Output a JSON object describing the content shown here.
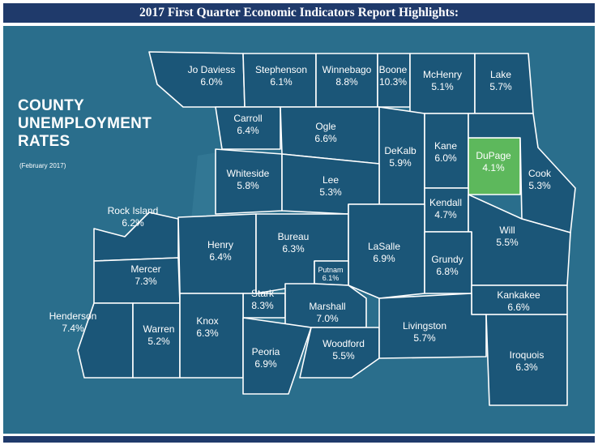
{
  "title": "2017 First Quarter Economic Indicators Report Highlights:",
  "map": {
    "heading_lines": [
      "COUNTY",
      "UNEMPLOYMENT",
      "RATES"
    ],
    "subheading": "(February 2017)",
    "highlight_color": "#5db85c",
    "county_color": "#1b5678",
    "background_color": "#2a6e8c",
    "counties": [
      {
        "name": "Jo Daviess",
        "rate": "6.0%"
      },
      {
        "name": "Stephenson",
        "rate": "6.1%"
      },
      {
        "name": "Winnebago",
        "rate": "8.8%"
      },
      {
        "name": "Boone",
        "rate": "10.3%"
      },
      {
        "name": "McHenry",
        "rate": "5.1%"
      },
      {
        "name": "Lake",
        "rate": "5.7%"
      },
      {
        "name": "Carroll",
        "rate": "6.4%"
      },
      {
        "name": "Ogle",
        "rate": "6.6%"
      },
      {
        "name": "DeKalb",
        "rate": "5.9%"
      },
      {
        "name": "Kane",
        "rate": "6.0%"
      },
      {
        "name": "DuPage",
        "rate": "4.1%"
      },
      {
        "name": "Cook",
        "rate": "5.3%"
      },
      {
        "name": "Whiteside",
        "rate": "5.8%"
      },
      {
        "name": "Lee",
        "rate": "5.3%"
      },
      {
        "name": "Rock Island",
        "rate": "6.2%"
      },
      {
        "name": "Kendall",
        "rate": "4.7%"
      },
      {
        "name": "Will",
        "rate": "5.5%"
      },
      {
        "name": "Henry",
        "rate": "6.4%"
      },
      {
        "name": "Bureau",
        "rate": "6.3%"
      },
      {
        "name": "LaSalle",
        "rate": "6.9%"
      },
      {
        "name": "Grundy",
        "rate": "6.8%"
      },
      {
        "name": "Mercer",
        "rate": "7.3%"
      },
      {
        "name": "Putnam",
        "rate": "6.1%"
      },
      {
        "name": "Stark",
        "rate": "8.3%"
      },
      {
        "name": "Marshall",
        "rate": "7.0%"
      },
      {
        "name": "Kankakee",
        "rate": "6.6%"
      },
      {
        "name": "Henderson",
        "rate": "7.4%"
      },
      {
        "name": "Warren",
        "rate": "5.2%"
      },
      {
        "name": "Knox",
        "rate": "6.3%"
      },
      {
        "name": "Peoria",
        "rate": "6.9%"
      },
      {
        "name": "Woodford",
        "rate": "5.5%"
      },
      {
        "name": "Livingston",
        "rate": "5.7%"
      },
      {
        "name": "Iroquois",
        "rate": "6.3%"
      }
    ]
  }
}
